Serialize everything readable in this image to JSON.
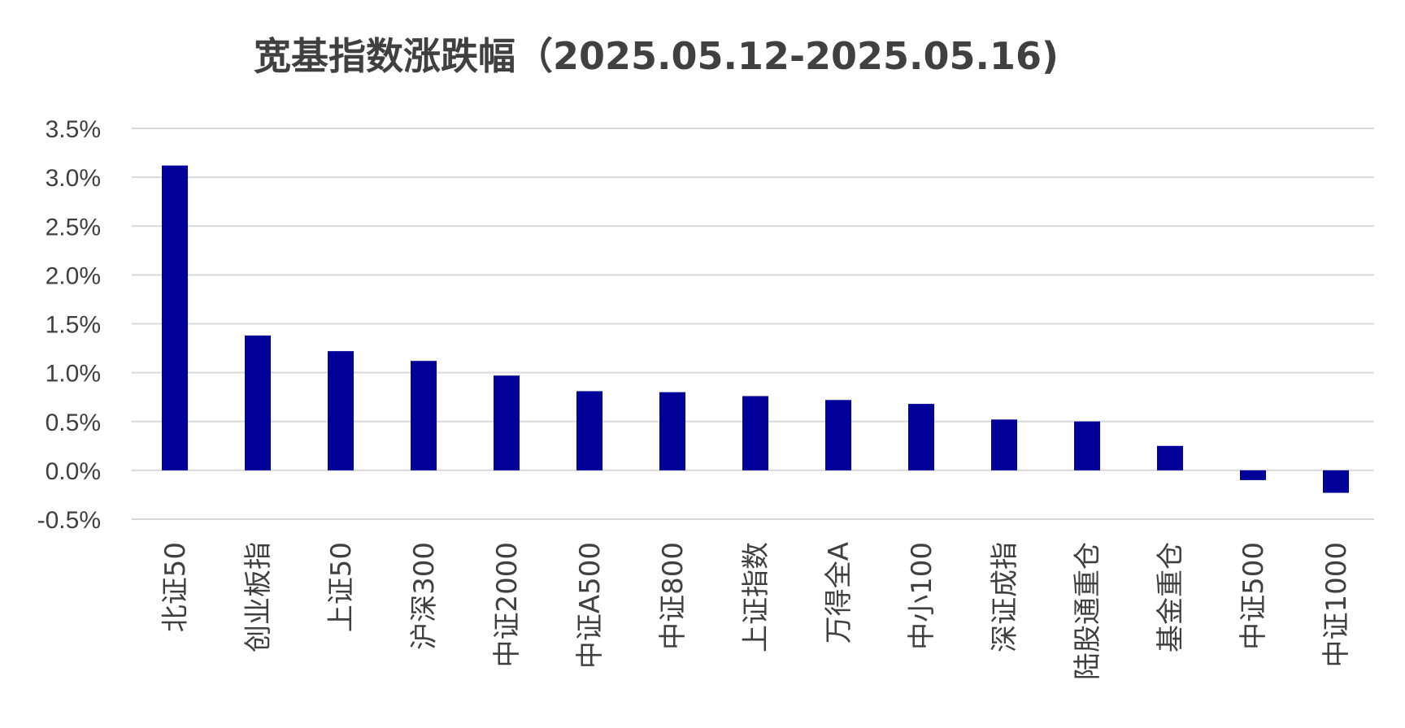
{
  "chart_data": {
    "type": "bar",
    "title": "宽基指数涨跌幅（2025.05.12-2025.05.16)",
    "xlabel": "",
    "ylabel": "",
    "ylim": [
      -0.5,
      3.5
    ],
    "y_ticks": [
      {
        "value": 3.5,
        "label": "3.5%"
      },
      {
        "value": 3.0,
        "label": "3.0%"
      },
      {
        "value": 2.5,
        "label": "2.5%"
      },
      {
        "value": 2.0,
        "label": "2.0%"
      },
      {
        "value": 1.5,
        "label": "1.5%"
      },
      {
        "value": 1.0,
        "label": "1.0%"
      },
      {
        "value": 0.5,
        "label": "0.5%"
      },
      {
        "value": 0.0,
        "label": "0.0%"
      },
      {
        "value": -0.5,
        "label": "-0.5%"
      }
    ],
    "grid": true,
    "legend": "none",
    "bar_color": "#000099",
    "categories": [
      "北证50",
      "创业板指",
      "上证50",
      "沪深300",
      "中证2000",
      "中证A500",
      "中证800",
      "上证指数",
      "万得全A",
      "中小100",
      "深证成指",
      "陆股通重仓",
      "基金重仓",
      "中证500",
      "中证1000"
    ],
    "values": [
      3.12,
      1.38,
      1.22,
      1.12,
      0.97,
      0.81,
      0.8,
      0.76,
      0.72,
      0.68,
      0.52,
      0.5,
      0.25,
      -0.1,
      -0.23
    ]
  }
}
